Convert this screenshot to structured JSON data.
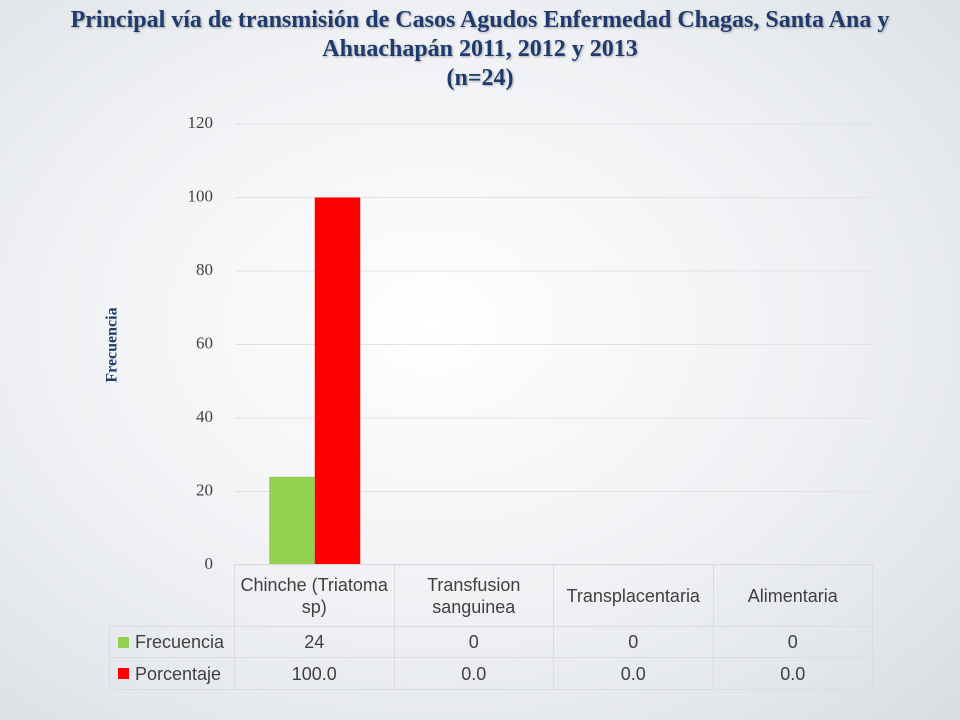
{
  "chart_data": {
    "type": "bar",
    "title": "Principal vía de transmisión de Casos Agudos Enfermedad Chagas, Santa Ana y Ahuachapán 2011, 2012 y 2013",
    "subtitle": "(n=24)",
    "y_label": "Frecuencia",
    "categories": [
      "Chinche (Triatoma sp)",
      "Transfusion sanguinea",
      "Transplacentaria",
      "Alimentaria"
    ],
    "series": [
      {
        "name": "Frecuencia",
        "color": "#92d050",
        "values": [
          24,
          0,
          0,
          0
        ]
      },
      {
        "name": "Porcentaje",
        "color": "#ff0000",
        "values": [
          100,
          0,
          0,
          0
        ],
        "value_labels": [
          "100.0",
          "0.0",
          "0.0",
          "0.0"
        ]
      }
    ],
    "ylim": [
      0,
      120
    ],
    "yticks": [
      0,
      20,
      40,
      60,
      80,
      100,
      120
    ],
    "grid": true,
    "data_table": true
  }
}
